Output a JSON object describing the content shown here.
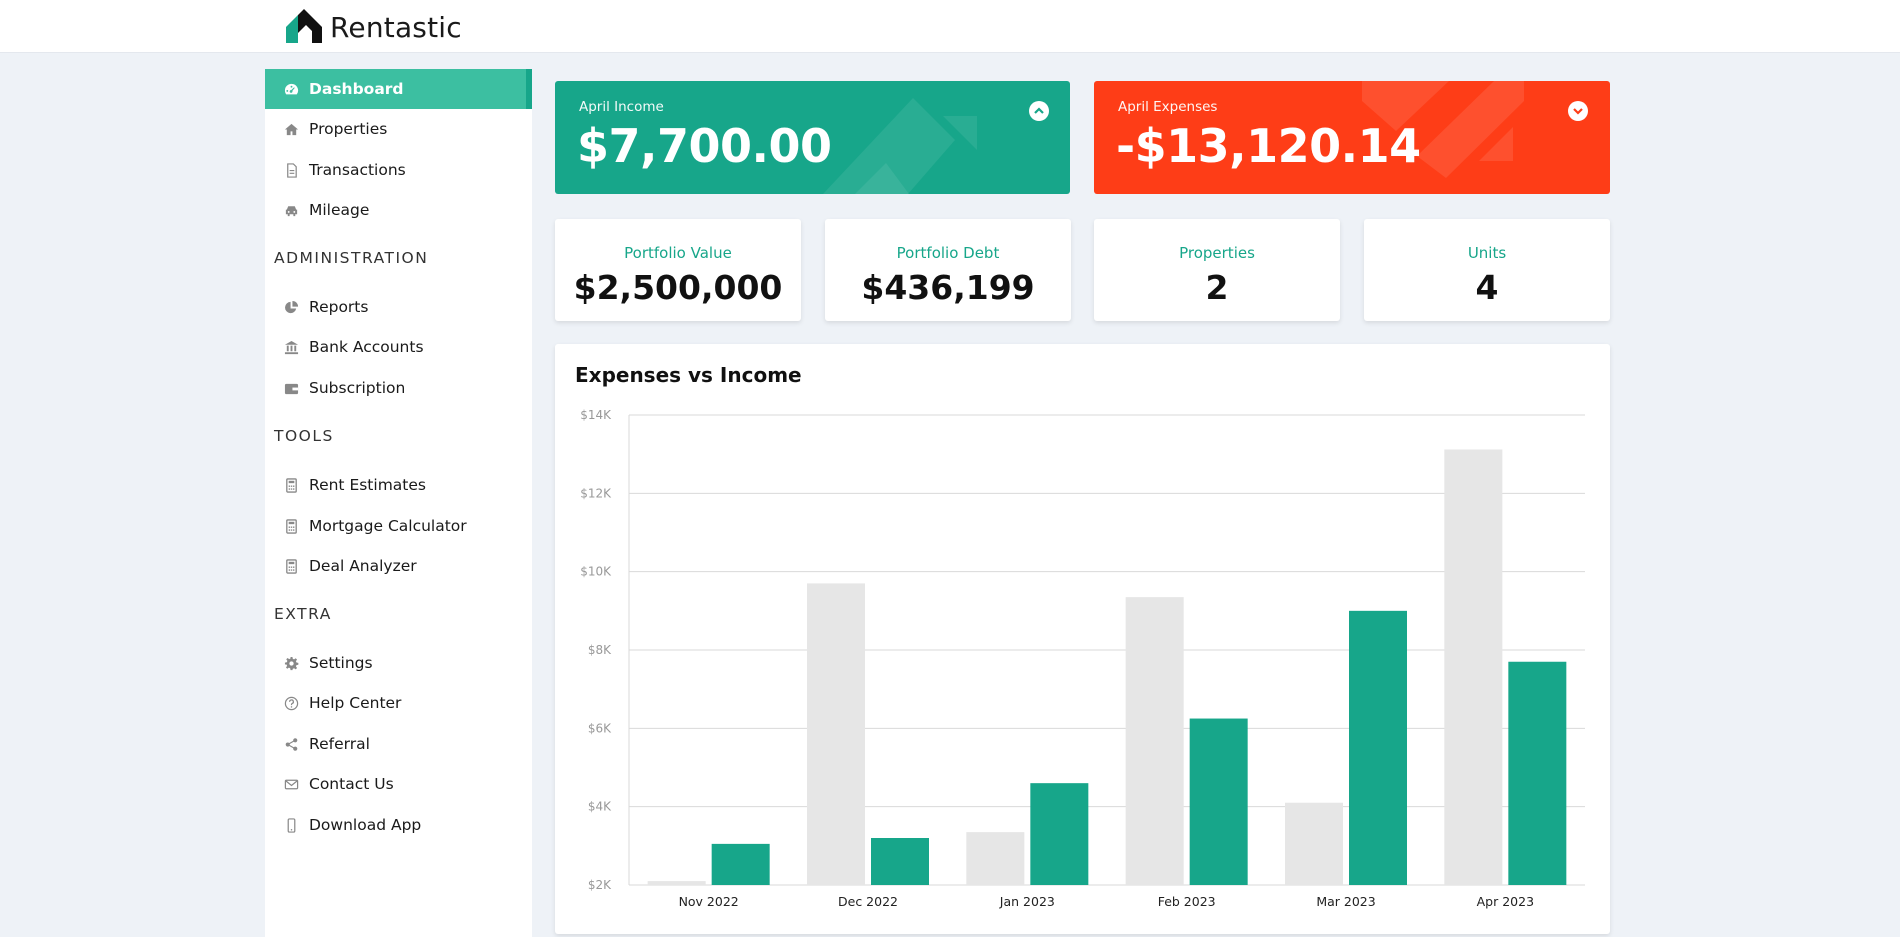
{
  "app": {
    "name": "Rentastic"
  },
  "sidebar": {
    "items": [
      {
        "label": "Dashboard",
        "icon": "dashboard-icon",
        "active": true
      },
      {
        "label": "Properties",
        "icon": "home-icon"
      },
      {
        "label": "Transactions",
        "icon": "document-icon"
      },
      {
        "label": "Mileage",
        "icon": "car-icon"
      }
    ],
    "sections": [
      {
        "title": "ADMINISTRATION",
        "items": [
          {
            "label": "Reports",
            "icon": "pie-chart-icon"
          },
          {
            "label": "Bank Accounts",
            "icon": "bank-icon"
          },
          {
            "label": "Subscription",
            "icon": "wallet-icon"
          }
        ]
      },
      {
        "title": "TOOLS",
        "items": [
          {
            "label": "Rent Estimates",
            "icon": "calculator-icon"
          },
          {
            "label": "Mortgage Calculator",
            "icon": "calculator-icon"
          },
          {
            "label": "Deal Analyzer",
            "icon": "calculator-icon"
          }
        ]
      },
      {
        "title": "EXTRA",
        "items": [
          {
            "label": "Settings",
            "icon": "gear-icon"
          },
          {
            "label": "Help Center",
            "icon": "question-icon"
          },
          {
            "label": "Referral",
            "icon": "share-icon"
          },
          {
            "label": "Contact Us",
            "icon": "envelope-icon"
          },
          {
            "label": "Download App",
            "icon": "mobile-icon"
          }
        ]
      }
    ]
  },
  "summary": {
    "income": {
      "label": "April Income",
      "value": "$7,700.00",
      "color": "#17a68a",
      "toggle_icon": "chevron-up-icon"
    },
    "expenses": {
      "label": "April Expenses",
      "value": "-$13,120.14",
      "color": "#fe3d17",
      "toggle_icon": "chevron-down-icon"
    }
  },
  "stats": [
    {
      "label": "Portfolio Value",
      "value": "$2,500,000"
    },
    {
      "label": "Portfolio Debt",
      "value": "$436,199"
    },
    {
      "label": "Properties",
      "value": "2"
    },
    {
      "label": "Units",
      "value": "4"
    }
  ],
  "chart_data": {
    "type": "bar",
    "title": "Expenses vs Income",
    "categories": [
      "Nov 2022",
      "Dec 2022",
      "Jan 2023",
      "Feb 2023",
      "Mar 2023",
      "Apr 2023"
    ],
    "series": [
      {
        "values": [
          2100,
          9700,
          3350,
          9350,
          4100,
          13120
        ],
        "color": "#e6e6e6"
      },
      {
        "values": [
          3050,
          3200,
          4600,
          6250,
          9000,
          7700
        ],
        "color": "#17a68a"
      }
    ],
    "ylim": [
      2000,
      14000
    ],
    "yticks": [
      2000,
      4000,
      6000,
      8000,
      10000,
      12000,
      14000
    ],
    "ytick_labels": [
      "$2K",
      "$4K",
      "$6K",
      "$8K",
      "$10K",
      "$12K",
      "$14K"
    ],
    "grid": true
  }
}
